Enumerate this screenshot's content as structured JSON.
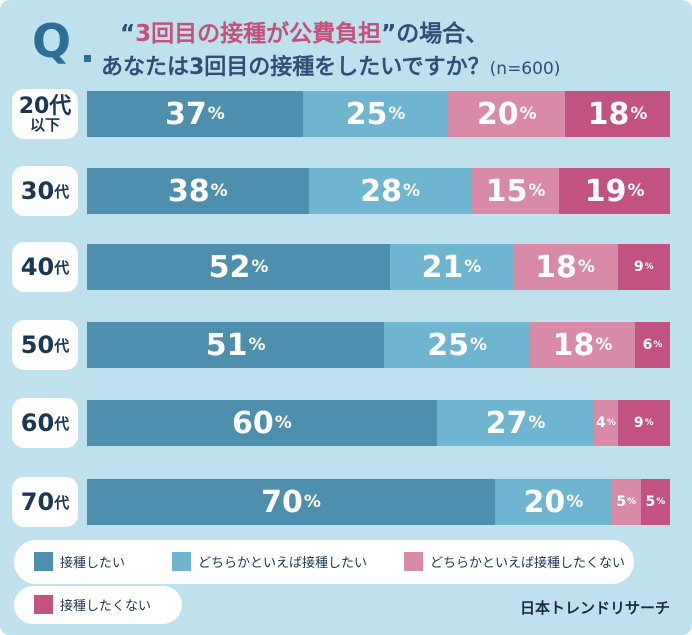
{
  "title": {
    "q": "Q",
    "open_quote": "“",
    "highlight": "3回目の接種が公費負担",
    "close_quote": "”の場合、",
    "line2": "あなたは3回目の接種をしたいですか？",
    "n_note": "(n=600)"
  },
  "chart_data": {
    "type": "bar",
    "orientation": "horizontal",
    "stacked": true,
    "categories": [
      "20代以下",
      "30代",
      "40代",
      "50代",
      "60代",
      "70代"
    ],
    "series": [
      {
        "name": "接種したい",
        "values": [
          37,
          38,
          52,
          51,
          60,
          70
        ],
        "color": "#4e8fae"
      },
      {
        "name": "どちらかといえば接種したい",
        "values": [
          25,
          28,
          21,
          25,
          27,
          20
        ],
        "color": "#6fb5cf"
      },
      {
        "name": "どちらかといえば接種したくない",
        "values": [
          20,
          15,
          18,
          18,
          4,
          5
        ],
        "color": "#d98aa9"
      },
      {
        "name": "接種したくない",
        "values": [
          18,
          19,
          9,
          6,
          9,
          5
        ],
        "color": "#c25282"
      }
    ],
    "value_suffix": "%",
    "legend": "bottom"
  },
  "rows": [
    {
      "l1": "20代",
      "l2": "以下",
      "num": "20",
      "kanji": "代"
    },
    {
      "num": "30",
      "kanji": "代"
    },
    {
      "num": "40",
      "kanji": "代"
    },
    {
      "num": "50",
      "kanji": "代"
    },
    {
      "num": "60",
      "kanji": "代"
    },
    {
      "num": "70",
      "kanji": "代"
    }
  ],
  "credit": "日本トレンドリサーチ",
  "colors": {
    "background": "#bfe1ee",
    "title": "#2f4f78",
    "title_highlight": "#c4507c",
    "q_mark": "#2d6e98"
  }
}
